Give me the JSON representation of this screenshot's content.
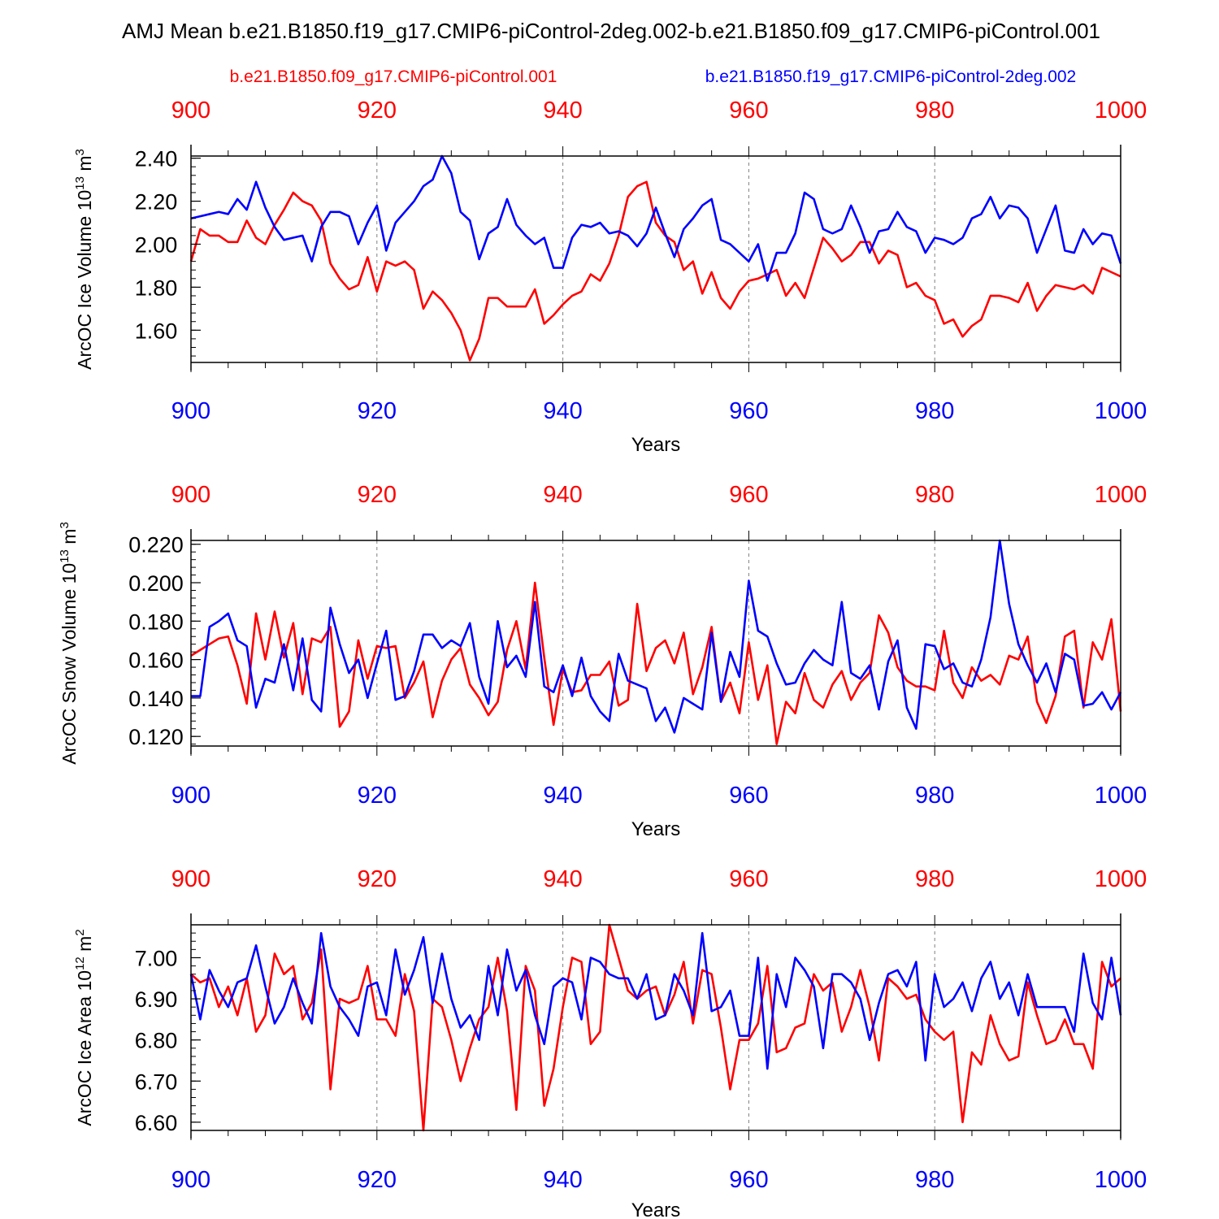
{
  "title": "AMJ Mean b.e21.B1850.f19_g17.CMIP6-piControl-2deg.002-b.e21.B1850.f09_g17.CMIP6-piControl.001",
  "legend": {
    "red_label": "b.e21.B1850.f09_g17.CMIP6-piControl.001",
    "blue_label": "b.e21.B1850.f19_g17.CMIP6-piControl-2deg.002"
  },
  "colors": {
    "red": "#ff0000",
    "blue": "#0000ff",
    "axis": "#000000",
    "grid": "#808080"
  },
  "chart_data": [
    {
      "type": "line",
      "name": "ice-volume",
      "ylabel_main": "ArcOC Ice Volume 10",
      "ylabel_exp": "13",
      "ylabel_unit": " m",
      "ylabel_unit_exp": "3",
      "xlabel": "Years",
      "xlim": [
        900,
        1000
      ],
      "ylim": [
        1.45,
        2.41
      ],
      "xticks": [
        900,
        920,
        940,
        960,
        980,
        1000
      ],
      "xtick_labels": [
        "900",
        "920",
        "940",
        "960",
        "980",
        "1000"
      ],
      "yticks": [
        1.6,
        1.8,
        2.0,
        2.2,
        2.4
      ],
      "ytick_labels": [
        "1.60",
        "1.80",
        "2.00",
        "2.20",
        "2.40"
      ],
      "yminor_step": 0.04,
      "series": [
        {
          "name": "b.e21.B1850.f09_g17.CMIP6-piControl.001",
          "color": "red",
          "values": [
            1.92,
            2.07,
            2.04,
            2.04,
            2.01,
            2.01,
            2.11,
            2.03,
            2.0,
            2.09,
            2.16,
            2.24,
            2.2,
            2.18,
            2.11,
            1.91,
            1.84,
            1.79,
            1.81,
            1.94,
            1.78,
            1.92,
            1.9,
            1.92,
            1.88,
            1.7,
            1.78,
            1.74,
            1.68,
            1.6,
            1.46,
            1.56,
            1.75,
            1.75,
            1.71,
            1.71,
            1.71,
            1.79,
            1.63,
            1.67,
            1.72,
            1.76,
            1.78,
            1.86,
            1.83,
            1.91,
            2.04,
            2.22,
            2.27,
            2.29,
            2.1,
            2.04,
            2.01,
            1.88,
            1.92,
            1.77,
            1.87,
            1.75,
            1.7,
            1.78,
            1.83,
            1.84,
            1.86,
            1.88,
            1.76,
            1.82,
            1.75,
            1.89,
            2.03,
            1.98,
            1.92,
            1.95,
            2.01,
            2.01,
            1.91,
            1.97,
            1.95,
            1.8,
            1.82,
            1.76,
            1.74,
            1.63,
            1.65,
            1.57,
            1.62,
            1.65,
            1.76,
            1.76,
            1.75,
            1.73,
            1.82,
            1.69,
            1.76,
            1.81,
            1.8,
            1.79,
            1.81,
            1.77,
            1.89,
            1.87,
            1.85
          ]
        },
        {
          "name": "b.e21.B1850.f19_g17.CMIP6-piControl-2deg.002",
          "color": "blue",
          "values": [
            2.12,
            2.13,
            2.14,
            2.15,
            2.14,
            2.21,
            2.16,
            2.29,
            2.17,
            2.08,
            2.02,
            2.03,
            2.04,
            1.92,
            2.08,
            2.15,
            2.15,
            2.13,
            2.0,
            2.1,
            2.18,
            1.97,
            2.1,
            2.15,
            2.2,
            2.27,
            2.3,
            2.41,
            2.33,
            2.15,
            2.11,
            1.93,
            2.05,
            2.08,
            2.21,
            2.09,
            2.04,
            2.0,
            2.03,
            1.89,
            1.89,
            2.03,
            2.09,
            2.08,
            2.1,
            2.05,
            2.06,
            2.04,
            1.99,
            2.05,
            2.17,
            2.05,
            1.94,
            2.07,
            2.12,
            2.18,
            2.21,
            2.02,
            2.0,
            1.96,
            1.92,
            2.0,
            1.83,
            1.96,
            1.96,
            2.05,
            2.24,
            2.21,
            2.07,
            2.05,
            2.07,
            2.18,
            2.08,
            1.96,
            2.06,
            2.07,
            2.15,
            2.08,
            2.06,
            1.96,
            2.03,
            2.02,
            2.0,
            2.03,
            2.12,
            2.14,
            2.22,
            2.12,
            2.18,
            2.17,
            2.12,
            1.96,
            2.07,
            2.18,
            1.97,
            1.96,
            2.07,
            2.0,
            2.05,
            2.04,
            1.91
          ]
        }
      ]
    },
    {
      "type": "line",
      "name": "snow-volume",
      "ylabel_main": "ArcOC Snow Volume 10",
      "ylabel_exp": "13",
      "ylabel_unit": " m",
      "ylabel_unit_exp": "3",
      "xlabel": "Years",
      "xlim": [
        900,
        1000
      ],
      "ylim": [
        0.115,
        0.222
      ],
      "xticks": [
        900,
        920,
        940,
        960,
        980,
        1000
      ],
      "xtick_labels": [
        "900",
        "920",
        "940",
        "960",
        "980",
        "1000"
      ],
      "yticks": [
        0.12,
        0.14,
        0.16,
        0.18,
        0.2,
        0.22
      ],
      "ytick_labels": [
        "0.120",
        "0.140",
        "0.160",
        "0.180",
        "0.200",
        "0.220"
      ],
      "yminor_step": 0.004,
      "series": [
        {
          "name": "b.e21.B1850.f09_g17.CMIP6-piControl.001",
          "color": "red",
          "values": [
            0.162,
            0.165,
            0.168,
            0.171,
            0.172,
            0.157,
            0.137,
            0.184,
            0.16,
            0.185,
            0.161,
            0.179,
            0.142,
            0.171,
            0.169,
            0.177,
            0.125,
            0.133,
            0.17,
            0.15,
            0.167,
            0.166,
            0.167,
            0.14,
            0.148,
            0.159,
            0.13,
            0.149,
            0.16,
            0.166,
            0.147,
            0.14,
            0.131,
            0.138,
            0.165,
            0.18,
            0.155,
            0.2,
            0.161,
            0.126,
            0.155,
            0.143,
            0.144,
            0.152,
            0.152,
            0.159,
            0.136,
            0.139,
            0.189,
            0.154,
            0.166,
            0.17,
            0.158,
            0.174,
            0.142,
            0.156,
            0.177,
            0.138,
            0.148,
            0.132,
            0.169,
            0.139,
            0.157,
            0.116,
            0.138,
            0.132,
            0.153,
            0.139,
            0.135,
            0.147,
            0.154,
            0.139,
            0.148,
            0.153,
            0.183,
            0.174,
            0.156,
            0.149,
            0.146,
            0.146,
            0.144,
            0.175,
            0.148,
            0.14,
            0.156,
            0.149,
            0.152,
            0.147,
            0.162,
            0.16,
            0.172,
            0.138,
            0.127,
            0.141,
            0.172,
            0.175,
            0.135,
            0.169,
            0.16,
            0.181,
            0.133
          ]
        },
        {
          "name": "b.e21.B1850.f19_g17.CMIP6-piControl-2deg.002",
          "color": "blue",
          "values": [
            0.141,
            0.141,
            0.177,
            0.18,
            0.184,
            0.17,
            0.167,
            0.135,
            0.15,
            0.148,
            0.168,
            0.144,
            0.171,
            0.139,
            0.133,
            0.187,
            0.168,
            0.153,
            0.16,
            0.14,
            0.158,
            0.175,
            0.139,
            0.141,
            0.154,
            0.173,
            0.173,
            0.166,
            0.17,
            0.167,
            0.179,
            0.151,
            0.137,
            0.18,
            0.156,
            0.162,
            0.151,
            0.19,
            0.146,
            0.143,
            0.157,
            0.141,
            0.161,
            0.141,
            0.133,
            0.128,
            0.163,
            0.149,
            0.147,
            0.145,
            0.128,
            0.135,
            0.122,
            0.14,
            0.137,
            0.134,
            0.174,
            0.138,
            0.164,
            0.151,
            0.201,
            0.175,
            0.172,
            0.158,
            0.147,
            0.148,
            0.158,
            0.165,
            0.16,
            0.157,
            0.19,
            0.153,
            0.15,
            0.157,
            0.134,
            0.159,
            0.17,
            0.135,
            0.124,
            0.168,
            0.167,
            0.155,
            0.158,
            0.148,
            0.146,
            0.16,
            0.182,
            0.222,
            0.189,
            0.168,
            0.157,
            0.148,
            0.158,
            0.143,
            0.163,
            0.16,
            0.136,
            0.137,
            0.143,
            0.134,
            0.143
          ]
        }
      ]
    },
    {
      "type": "line",
      "name": "ice-area",
      "ylabel_main": "ArcOC Ice Area 10",
      "ylabel_exp": "12",
      "ylabel_unit": " m",
      "ylabel_unit_exp": "2",
      "xlabel": "Years",
      "xlim": [
        900,
        1000
      ],
      "ylim": [
        6.58,
        7.08
      ],
      "xticks": [
        900,
        920,
        940,
        960,
        980,
        1000
      ],
      "xtick_labels": [
        "900",
        "920",
        "940",
        "960",
        "980",
        "1000"
      ],
      "yticks": [
        6.6,
        6.7,
        6.8,
        6.9,
        7.0
      ],
      "ytick_labels": [
        "6.60",
        "6.70",
        "6.80",
        "6.90",
        "7.00"
      ],
      "yminor_step": 0.02,
      "series": [
        {
          "name": "b.e21.B1850.f09_g17.CMIP6-piControl.001",
          "color": "red",
          "values": [
            6.96,
            6.94,
            6.95,
            6.88,
            6.93,
            6.86,
            6.95,
            6.82,
            6.86,
            7.01,
            6.96,
            6.98,
            6.85,
            6.89,
            7.02,
            6.68,
            6.9,
            6.89,
            6.9,
            6.98,
            6.85,
            6.85,
            6.81,
            6.96,
            6.87,
            6.58,
            6.9,
            6.88,
            6.8,
            6.7,
            6.78,
            6.85,
            6.88,
            7.0,
            6.87,
            6.63,
            6.98,
            6.92,
            6.64,
            6.73,
            6.88,
            7.0,
            6.99,
            6.79,
            6.82,
            7.08,
            7.0,
            6.92,
            6.9,
            6.92,
            6.93,
            6.86,
            6.91,
            6.99,
            6.84,
            6.97,
            6.96,
            6.83,
            6.68,
            6.8,
            6.8,
            6.84,
            6.98,
            6.77,
            6.78,
            6.83,
            6.84,
            6.96,
            6.92,
            6.94,
            6.82,
            6.88,
            6.97,
            6.88,
            6.75,
            6.95,
            6.93,
            6.9,
            6.91,
            6.85,
            6.82,
            6.8,
            6.82,
            6.6,
            6.77,
            6.74,
            6.86,
            6.79,
            6.75,
            6.76,
            6.94,
            6.86,
            6.79,
            6.8,
            6.85,
            6.79,
            6.79,
            6.73,
            6.99,
            6.93,
            6.95
          ]
        },
        {
          "name": "b.e21.B1850.f19_g17.CMIP6-piControl-2deg.002",
          "color": "blue",
          "values": [
            6.96,
            6.85,
            6.97,
            6.92,
            6.88,
            6.94,
            6.95,
            7.03,
            6.93,
            6.84,
            6.88,
            6.95,
            6.89,
            6.84,
            7.06,
            6.93,
            6.88,
            6.85,
            6.81,
            6.93,
            6.94,
            6.86,
            7.02,
            6.91,
            6.97,
            7.05,
            6.89,
            7.01,
            6.9,
            6.83,
            6.86,
            6.8,
            6.98,
            6.86,
            7.02,
            6.92,
            6.97,
            6.86,
            6.79,
            6.93,
            6.95,
            6.94,
            6.85,
            7.0,
            6.99,
            6.96,
            6.95,
            6.95,
            6.9,
            6.96,
            6.85,
            6.86,
            6.96,
            6.92,
            6.86,
            7.06,
            6.87,
            6.88,
            6.92,
            6.81,
            6.81,
            7.0,
            6.73,
            6.96,
            6.88,
            7.0,
            6.97,
            6.93,
            6.78,
            6.96,
            6.96,
            6.94,
            6.9,
            6.8,
            6.89,
            6.96,
            6.97,
            6.93,
            6.99,
            6.75,
            6.96,
            6.88,
            6.9,
            6.94,
            6.87,
            6.95,
            6.99,
            6.9,
            6.94,
            6.86,
            6.96,
            6.88,
            6.88,
            6.88,
            6.88,
            6.82,
            7.01,
            6.89,
            6.85,
            7.0,
            6.86
          ]
        }
      ]
    }
  ]
}
